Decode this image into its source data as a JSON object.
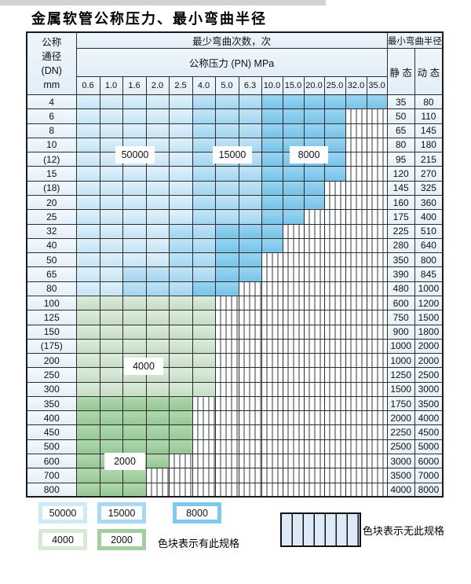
{
  "page": {
    "title": "金属软管公称压力、最小弯曲半径"
  },
  "table": {
    "header": {
      "dn_lines": [
        "公称",
        "通径",
        "(DN)",
        "mm"
      ],
      "cycles_label": "最少弯曲次数，次",
      "pressure_label": "公称压力 (PN) MPa",
      "pressure_values": [
        "0.6",
        "1.0",
        "1.6",
        "2.0",
        "2.5",
        "4.0",
        "5.0",
        "6.3",
        "10.0",
        "15.0",
        "20.0",
        "25.0",
        "32.0",
        "35.0"
      ],
      "radius_label": "最小弯曲半径",
      "static_label": "静 态",
      "dynamic_label": "动 态"
    },
    "rows": [
      {
        "dn": "4",
        "static": "35",
        "dynamic": "80",
        "cells": [
          50000,
          50000,
          50000,
          50000,
          50000,
          15000,
          15000,
          15000,
          8000,
          8000,
          8000,
          8000,
          8000,
          8000
        ]
      },
      {
        "dn": "6",
        "static": "50",
        "dynamic": "110",
        "cells": [
          50000,
          50000,
          50000,
          50000,
          50000,
          15000,
          15000,
          15000,
          8000,
          8000,
          8000,
          8000,
          null,
          null
        ]
      },
      {
        "dn": "8",
        "static": "65",
        "dynamic": "145",
        "cells": [
          50000,
          50000,
          50000,
          50000,
          50000,
          15000,
          15000,
          15000,
          8000,
          8000,
          8000,
          8000,
          null,
          null
        ]
      },
      {
        "dn": "10",
        "static": "80",
        "dynamic": "180",
        "cells": [
          50000,
          50000,
          50000,
          50000,
          50000,
          15000,
          15000,
          15000,
          8000,
          8000,
          8000,
          8000,
          null,
          null
        ]
      },
      {
        "dn": "(12)",
        "static": "95",
        "dynamic": "215",
        "cells": [
          50000,
          50000,
          50000,
          50000,
          50000,
          15000,
          15000,
          15000,
          8000,
          8000,
          8000,
          8000,
          null,
          null
        ]
      },
      {
        "dn": "15",
        "static": "120",
        "dynamic": "270",
        "cells": [
          50000,
          50000,
          50000,
          50000,
          50000,
          15000,
          15000,
          15000,
          8000,
          8000,
          8000,
          8000,
          null,
          null
        ]
      },
      {
        "dn": "(18)",
        "static": "145",
        "dynamic": "325",
        "cells": [
          50000,
          50000,
          50000,
          50000,
          50000,
          15000,
          15000,
          15000,
          8000,
          8000,
          8000,
          null,
          null,
          null
        ]
      },
      {
        "dn": "20",
        "static": "160",
        "dynamic": "360",
        "cells": [
          50000,
          50000,
          50000,
          50000,
          50000,
          15000,
          15000,
          15000,
          8000,
          8000,
          8000,
          null,
          null,
          null
        ]
      },
      {
        "dn": "25",
        "static": "175",
        "dynamic": "400",
        "cells": [
          50000,
          50000,
          50000,
          50000,
          50000,
          15000,
          15000,
          15000,
          8000,
          8000,
          null,
          null,
          null,
          null
        ]
      },
      {
        "dn": "32",
        "static": "225",
        "dynamic": "510",
        "cells": [
          50000,
          50000,
          50000,
          50000,
          15000,
          15000,
          8000,
          8000,
          8000,
          null,
          null,
          null,
          null,
          null
        ]
      },
      {
        "dn": "40",
        "static": "280",
        "dynamic": "640",
        "cells": [
          50000,
          50000,
          50000,
          50000,
          15000,
          15000,
          8000,
          8000,
          8000,
          null,
          null,
          null,
          null,
          null
        ]
      },
      {
        "dn": "50",
        "static": "350",
        "dynamic": "800",
        "cells": [
          50000,
          50000,
          50000,
          50000,
          15000,
          15000,
          8000,
          8000,
          null,
          null,
          null,
          null,
          null,
          null
        ]
      },
      {
        "dn": "65",
        "static": "390",
        "dynamic": "845",
        "cells": [
          50000,
          50000,
          15000,
          15000,
          15000,
          15000,
          8000,
          8000,
          null,
          null,
          null,
          null,
          null,
          null
        ]
      },
      {
        "dn": "80",
        "static": "480",
        "dynamic": "1000",
        "cells": [
          50000,
          50000,
          15000,
          15000,
          15000,
          8000,
          8000,
          null,
          null,
          null,
          null,
          null,
          null,
          null
        ]
      },
      {
        "dn": "100",
        "static": "600",
        "dynamic": "1200",
        "cells": [
          4000,
          4000,
          4000,
          4000,
          4000,
          4000,
          null,
          null,
          null,
          null,
          null,
          null,
          null,
          null
        ]
      },
      {
        "dn": "125",
        "static": "750",
        "dynamic": "1500",
        "cells": [
          4000,
          4000,
          4000,
          4000,
          4000,
          4000,
          null,
          null,
          null,
          null,
          null,
          null,
          null,
          null
        ]
      },
      {
        "dn": "150",
        "static": "900",
        "dynamic": "1800",
        "cells": [
          4000,
          4000,
          4000,
          4000,
          4000,
          4000,
          null,
          null,
          null,
          null,
          null,
          null,
          null,
          null
        ]
      },
      {
        "dn": "(175)",
        "static": "1000",
        "dynamic": "2000",
        "cells": [
          4000,
          4000,
          4000,
          4000,
          4000,
          4000,
          null,
          null,
          null,
          null,
          null,
          null,
          null,
          null
        ]
      },
      {
        "dn": "200",
        "static": "1000",
        "dynamic": "2000",
        "cells": [
          4000,
          4000,
          4000,
          4000,
          4000,
          4000,
          null,
          null,
          null,
          null,
          null,
          null,
          null,
          null
        ]
      },
      {
        "dn": "250",
        "static": "1250",
        "dynamic": "2500",
        "cells": [
          4000,
          4000,
          4000,
          4000,
          4000,
          4000,
          null,
          null,
          null,
          null,
          null,
          null,
          null,
          null
        ]
      },
      {
        "dn": "300",
        "static": "1500",
        "dynamic": "3000",
        "cells": [
          4000,
          4000,
          4000,
          4000,
          4000,
          4000,
          null,
          null,
          null,
          null,
          null,
          null,
          null,
          null
        ]
      },
      {
        "dn": "350",
        "static": "1750",
        "dynamic": "3500",
        "cells": [
          2000,
          2000,
          2000,
          2000,
          2000,
          null,
          null,
          null,
          null,
          null,
          null,
          null,
          null,
          null
        ]
      },
      {
        "dn": "400",
        "static": "2000",
        "dynamic": "4000",
        "cells": [
          2000,
          2000,
          2000,
          2000,
          2000,
          null,
          null,
          null,
          null,
          null,
          null,
          null,
          null,
          null
        ]
      },
      {
        "dn": "450",
        "static": "2250",
        "dynamic": "4500",
        "cells": [
          2000,
          2000,
          2000,
          2000,
          2000,
          null,
          null,
          null,
          null,
          null,
          null,
          null,
          null,
          null
        ]
      },
      {
        "dn": "500",
        "static": "2500",
        "dynamic": "5000",
        "cells": [
          2000,
          2000,
          2000,
          2000,
          2000,
          null,
          null,
          null,
          null,
          null,
          null,
          null,
          null,
          null
        ]
      },
      {
        "dn": "600",
        "static": "3000",
        "dynamic": "6000",
        "cells": [
          2000,
          2000,
          2000,
          2000,
          null,
          null,
          null,
          null,
          null,
          null,
          null,
          null,
          null,
          null
        ]
      },
      {
        "dn": "700",
        "static": "3500",
        "dynamic": "7000",
        "cells": [
          2000,
          2000,
          2000,
          null,
          null,
          null,
          null,
          null,
          null,
          null,
          null,
          null,
          null,
          null
        ]
      },
      {
        "dn": "800",
        "static": "4000",
        "dynamic": "8000",
        "cells": [
          2000,
          2000,
          2000,
          null,
          null,
          null,
          null,
          null,
          null,
          null,
          null,
          null,
          null,
          null
        ]
      }
    ]
  },
  "overlays": {
    "v50000": "50000",
    "v15000": "15000",
    "v8000": "8000",
    "v4000": "4000",
    "v2000": "2000"
  },
  "legend": {
    "chips": [
      {
        "value": "50000",
        "color": "#cfe9f8"
      },
      {
        "value": "15000",
        "color": "#a9d8f1"
      },
      {
        "value": "8000",
        "color": "#7fc9ee"
      },
      {
        "value": "4000",
        "color": "#d8ead6"
      },
      {
        "value": "2000",
        "color": "#a2cfa2"
      }
    ],
    "has_spec_text": "色块表示有此规格",
    "no_spec_text": "色块表示无此规格"
  }
}
